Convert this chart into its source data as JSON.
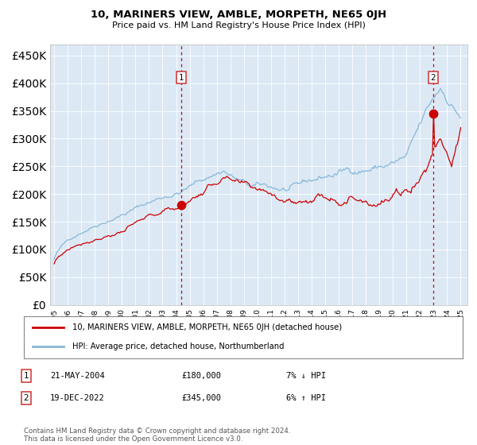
{
  "title": "10, MARINERS VIEW, AMBLE, MORPETH, NE65 0JH",
  "subtitle": "Price paid vs. HM Land Registry's House Price Index (HPI)",
  "hpi_label": "HPI: Average price, detached house, Northumberland",
  "property_label": "10, MARINERS VIEW, AMBLE, MORPETH, NE65 0JH (detached house)",
  "annotation1": {
    "label": "1",
    "date": "21-MAY-2004",
    "price": "£180,000",
    "hpi_change": "7% ↓ HPI",
    "x_year": 2004.38,
    "y_val": 180000
  },
  "annotation2": {
    "label": "2",
    "date": "19-DEC-2022",
    "price": "£345,000",
    "hpi_change": "6% ↑ HPI",
    "x_year": 2022.96,
    "y_val": 345000
  },
  "ylim": [
    0,
    470000
  ],
  "xlim": [
    1994.7,
    2025.5
  ],
  "yticks": [
    0,
    50000,
    100000,
    150000,
    200000,
    250000,
    300000,
    350000,
    400000,
    450000
  ],
  "bg_color": "#dce9f5",
  "line_color_red": "#cc0000",
  "line_color_blue": "#88b8d8",
  "marker_color": "#cc0000",
  "vline_color": "#cc0000",
  "legend_box_color": "#cc3333",
  "footer": "Contains HM Land Registry data © Crown copyright and database right 2024.\nThis data is licensed under the Open Government Licence v3.0."
}
